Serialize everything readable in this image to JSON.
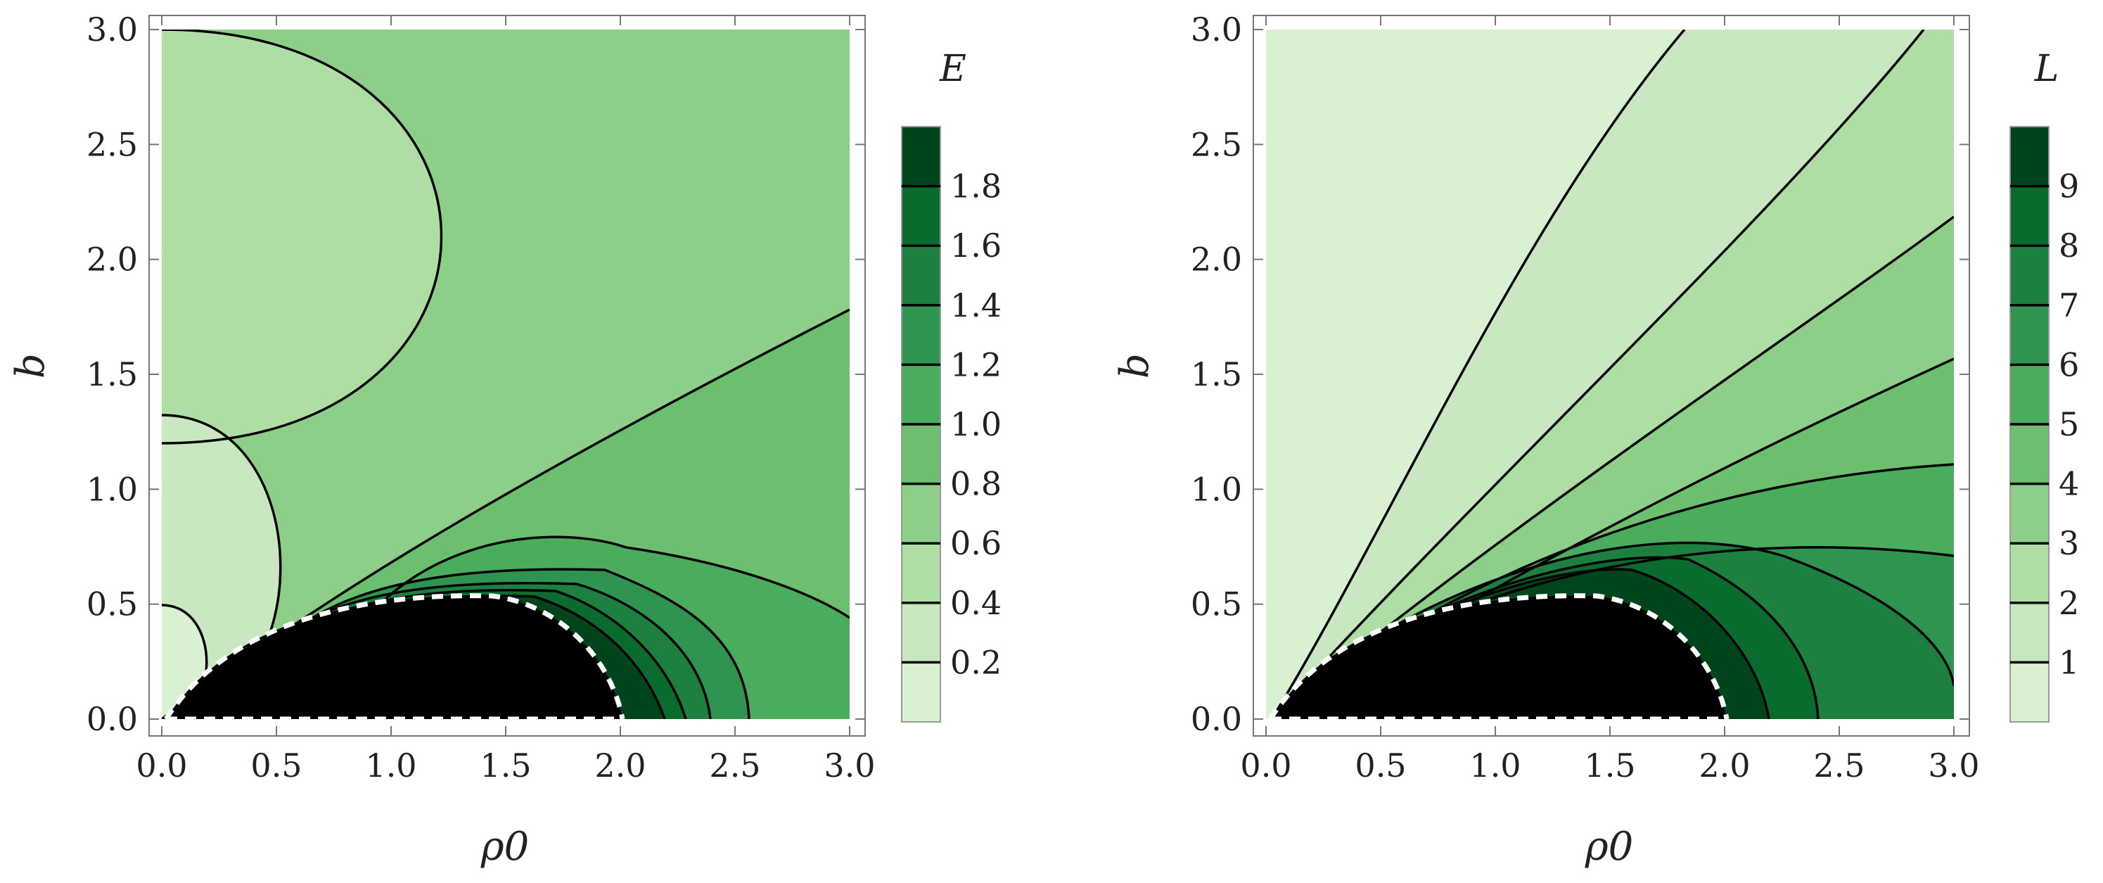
{
  "chart_data": [
    {
      "type": "heatmap",
      "subtype": "contour",
      "title": "",
      "xlabel": "ρ0",
      "ylabel": "b",
      "xlim": [
        0,
        3
      ],
      "ylim": [
        0,
        3
      ],
      "xticks": [
        "0.0",
        "0.5",
        "1.0",
        "1.5",
        "2.0",
        "2.5",
        "3.0"
      ],
      "yticks": [
        "0.0",
        "0.5",
        "1.0",
        "1.5",
        "2.0",
        "2.5",
        "3.0"
      ],
      "colorbar": {
        "title": "E",
        "range": [
          0,
          2
        ],
        "ticks": [
          "0.2",
          "0.4",
          "0.6",
          "0.8",
          "1.0",
          "1.2",
          "1.4",
          "1.6",
          "1.8"
        ],
        "colors": [
          "#d9f0d3",
          "#c9e8c2",
          "#aedea3",
          "#8dcf88",
          "#6cbf6e",
          "#4aad5e",
          "#2e9450",
          "#1d8041",
          "#0a6b2f",
          "#00441b"
        ]
      },
      "contour_levels": [
        0.2,
        0.4,
        0.6,
        0.8,
        1.0,
        1.2,
        1.4,
        1.6,
        1.8
      ],
      "dark_region": {
        "shape": "half-ellipse",
        "rho_range": [
          0,
          2.0
        ],
        "b_max": 0.55
      }
    },
    {
      "type": "heatmap",
      "subtype": "contour",
      "title": "",
      "xlabel": "ρ0",
      "ylabel": "b",
      "xlim": [
        0,
        3
      ],
      "ylim": [
        0,
        3
      ],
      "xticks": [
        "0.0",
        "0.5",
        "1.0",
        "1.5",
        "2.0",
        "2.5",
        "3.0"
      ],
      "yticks": [
        "0.0",
        "0.5",
        "1.0",
        "1.5",
        "2.0",
        "2.5",
        "3.0"
      ],
      "colorbar": {
        "title": "L",
        "range": [
          0,
          10
        ],
        "ticks": [
          "1",
          "2",
          "3",
          "4",
          "5",
          "6",
          "7",
          "8",
          "9"
        ],
        "colors": [
          "#d9f0d3",
          "#c9e8c2",
          "#aedea3",
          "#8dcf88",
          "#6cbf6e",
          "#4aad5e",
          "#2e9450",
          "#1d8041",
          "#0a6b2f",
          "#00441b"
        ]
      },
      "contour_levels": [
        1,
        2,
        3,
        4,
        5,
        6,
        7,
        8,
        9
      ],
      "dark_region": {
        "shape": "half-ellipse",
        "rho_range": [
          0,
          2.0
        ],
        "b_max": 0.55
      }
    }
  ]
}
